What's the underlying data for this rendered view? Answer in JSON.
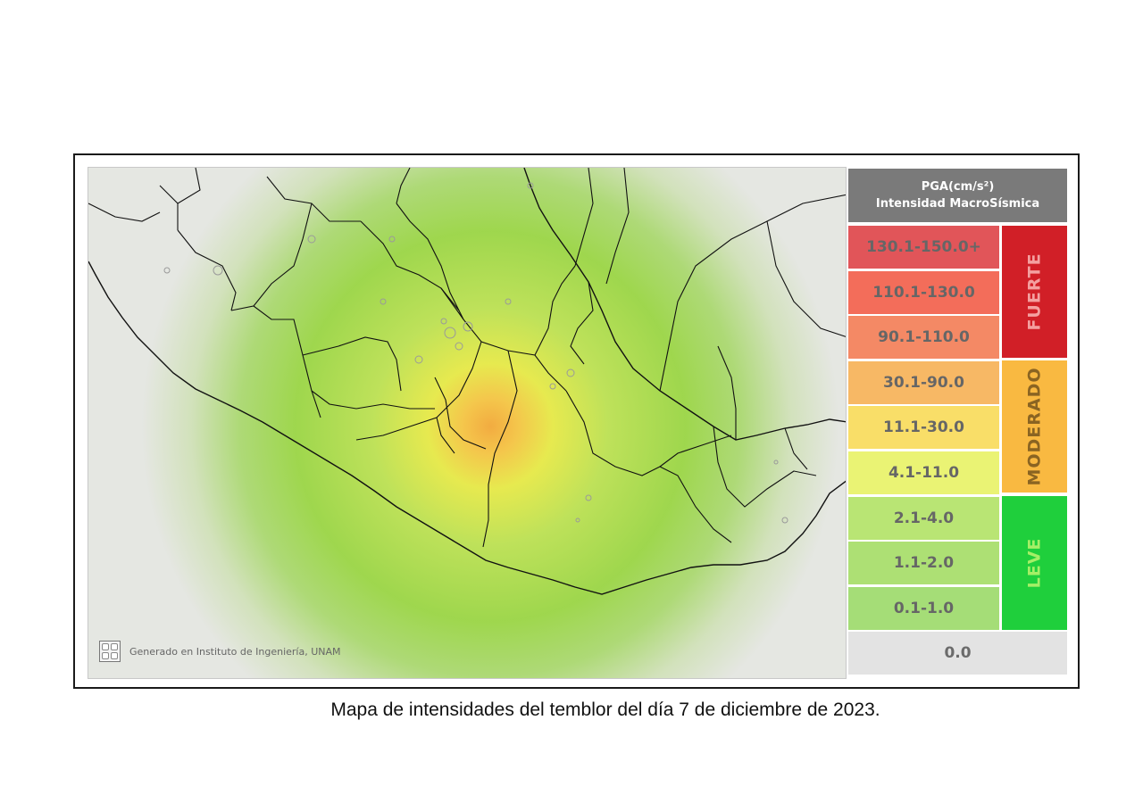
{
  "map": {
    "credit": "Generado en Instituto de Ingeniería, UNAM",
    "colors": {
      "land": "#e4e6e1",
      "sea": "#eceee9",
      "epicenter": "#f5a623",
      "ring_yellow": "#e4ea3c",
      "ring_green": "#8ed43a",
      "border": "#111111",
      "lakes": "#9a9a9a"
    }
  },
  "legend": {
    "header_line1": "PGA(cm/s²)",
    "header_line2": "Intensidad MacroSísmica",
    "rows": [
      {
        "label": "130.1-150.0+",
        "color": "#d9262b"
      },
      {
        "label": "110.1-130.0",
        "color": "#f0452d"
      },
      {
        "label": "90.1-110.0",
        "color": "#f2683a"
      },
      {
        "label": "30.1-90.0",
        "color": "#f6a53a"
      },
      {
        "label": "11.1-30.0",
        "color": "#f8d53e"
      },
      {
        "label": "4.1-11.0",
        "color": "#e5f04e"
      },
      {
        "label": "2.1-4.0",
        "color": "#a6de4e"
      },
      {
        "label": "1.1-2.0",
        "color": "#97d84e"
      },
      {
        "label": "0.1-1.0",
        "color": "#8dd451"
      }
    ],
    "zero": {
      "label": "0.0",
      "color": "#e3e3e3"
    },
    "bands": [
      {
        "label": "FUERTE",
        "color": "#d11f27",
        "text_color": "#f4a0a0"
      },
      {
        "label": "MODERADO",
        "color": "#f9b941",
        "text_color": "#8a6422"
      },
      {
        "label": "LEVE",
        "color": "#1fcf3c",
        "text_color": "#a5ef66"
      }
    ]
  },
  "caption": "Mapa de intensidades del temblor del día 7 de diciembre de 2023."
}
